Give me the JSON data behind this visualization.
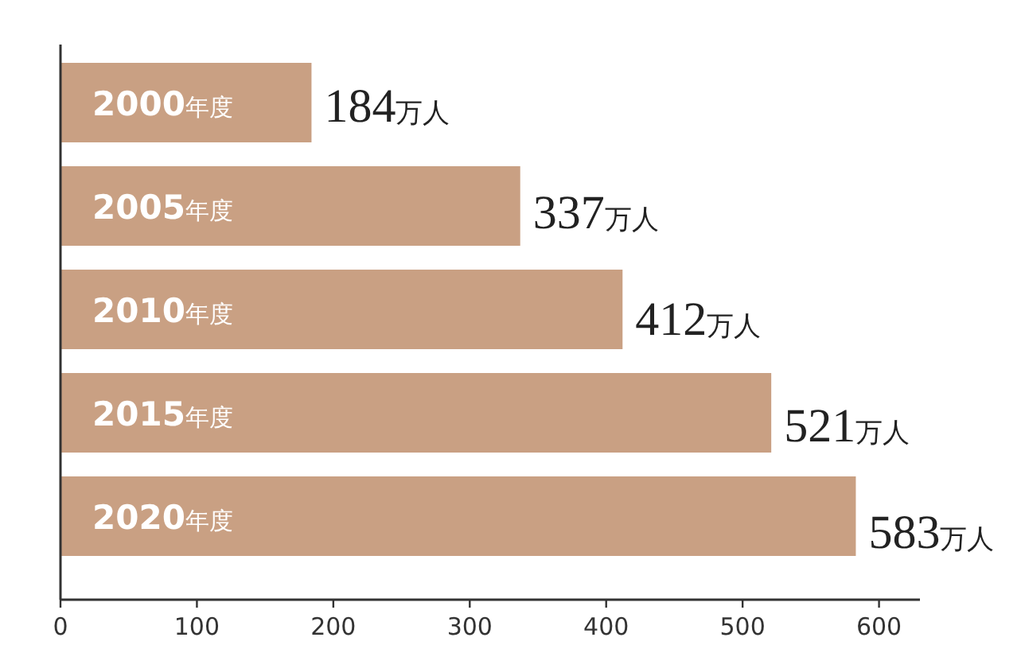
{
  "chart_data": {
    "type": "bar",
    "orientation": "horizontal",
    "categories": [
      "2000年度",
      "2005年度",
      "2010年度",
      "2015年度",
      "2020年度"
    ],
    "values": [
      184,
      337,
      412,
      521,
      583
    ],
    "value_labels": [
      "184万人",
      "337万人",
      "412万人",
      "521万人",
      "583万人"
    ],
    "color": "#c9a083",
    "xlim": [
      0,
      630
    ],
    "xticks": [
      0,
      100,
      200,
      300,
      400,
      500,
      600
    ]
  }
}
